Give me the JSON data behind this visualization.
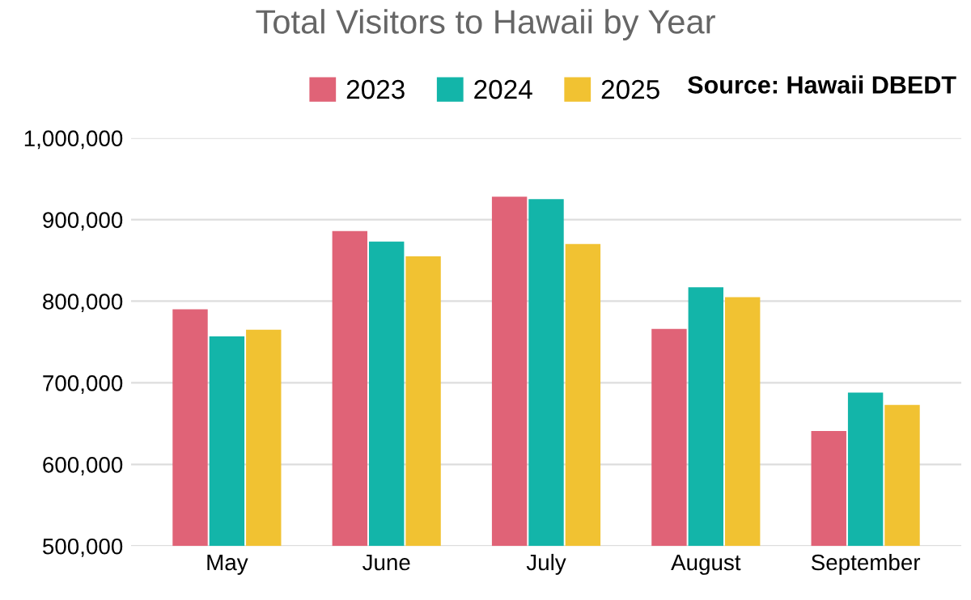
{
  "chart_data": {
    "type": "bar",
    "title": "Total Visitors to Hawaii by Year",
    "categories": [
      "May",
      "June",
      "July",
      "August",
      "September"
    ],
    "series": [
      {
        "name": "2023",
        "color": "#e06377",
        "values": [
          790000,
          886000,
          928000,
          766000,
          641000
        ]
      },
      {
        "name": "2024",
        "color": "#13b5a9",
        "values": [
          757000,
          873000,
          925000,
          817000,
          688000
        ]
      },
      {
        "name": "2025",
        "color": "#f1c232",
        "values": [
          765000,
          855000,
          870000,
          805000,
          673000
        ]
      }
    ],
    "ylim": [
      500000,
      1000000
    ],
    "yticks": [
      {
        "value": 500000,
        "label": "500,000"
      },
      {
        "value": 600000,
        "label": "600,000"
      },
      {
        "value": 700000,
        "label": "700,000"
      },
      {
        "value": 800000,
        "label": "800,000"
      },
      {
        "value": 900000,
        "label": "900,000"
      },
      {
        "value": 1000000,
        "label": "1,000,000"
      }
    ],
    "grid": "y",
    "legend": "top",
    "annotations": [
      "Source: Hawaii DBEDT"
    ]
  }
}
